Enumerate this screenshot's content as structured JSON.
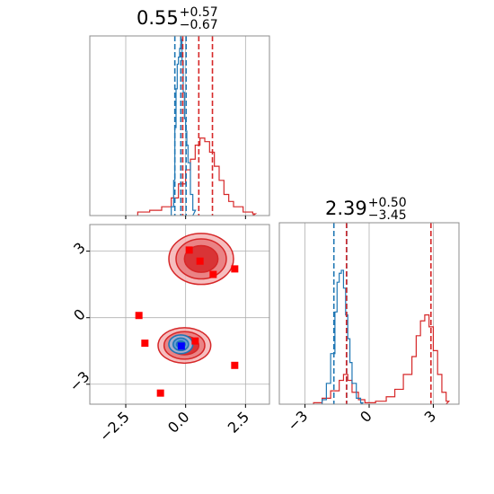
{
  "titles": {
    "x": {
      "value": "0.55",
      "plus": "+0.57",
      "minus": "−0.67"
    },
    "y": {
      "value": "2.39",
      "plus": "+0.50",
      "minus": "−3.45"
    }
  },
  "colors": {
    "red": "#d62728",
    "blue": "#1f77b4",
    "grid": "#b0b0b0",
    "marker_red": "#ff0000",
    "marker_blue": "#0000ff"
  },
  "chart_data": [
    {
      "panel": "x-marginal",
      "type": "area",
      "xlim": [
        -4,
        3.5
      ],
      "grid": true,
      "series": [
        {
          "color": "#d62728",
          "x": [
            -2.0,
            -1.5,
            -1.0,
            -0.6,
            -0.3,
            0.0,
            0.2,
            0.4,
            0.6,
            0.8,
            1.0,
            1.2,
            1.4,
            1.6,
            1.8,
            2.0,
            2.4,
            2.8
          ],
          "y": [
            0.02,
            0.03,
            0.05,
            0.1,
            0.18,
            0.26,
            0.32,
            0.4,
            0.44,
            0.42,
            0.36,
            0.28,
            0.2,
            0.12,
            0.08,
            0.05,
            0.02,
            0.01
          ]
        },
        {
          "color": "#1f77b4",
          "x": [
            -0.6,
            -0.5,
            -0.45,
            -0.4,
            -0.35,
            -0.3,
            -0.25,
            -0.2,
            -0.15,
            -0.1,
            -0.05,
            0.0,
            0.05,
            0.1,
            0.2,
            0.3
          ],
          "y": [
            0.05,
            0.2,
            0.5,
            0.72,
            0.86,
            0.9,
            0.95,
            1.0,
            0.88,
            0.7,
            0.55,
            0.48,
            0.4,
            0.3,
            0.12,
            0.03
          ]
        }
      ],
      "dashed_lines": [
        {
          "color": "#1f77b4",
          "x": [
            -0.45,
            -0.2,
            0.02
          ]
        },
        {
          "color": "#d62728",
          "x": [
            -0.12,
            0.55,
            1.12
          ]
        }
      ]
    },
    {
      "panel": "y-marginal",
      "type": "area",
      "xlim": [
        -4.2,
        4.2
      ],
      "xticks": [
        -3,
        0,
        3
      ],
      "xtick_labels": [
        "−3",
        "0",
        "3"
      ],
      "grid": true,
      "series": [
        {
          "color": "#d62728",
          "x": [
            -2.6,
            -2.2,
            -1.8,
            -1.4,
            -1.2,
            -1.0,
            -0.8,
            -0.5,
            -0.2,
            0.3,
            0.8,
            1.2,
            1.6,
            2.0,
            2.2,
            2.4,
            2.6,
            2.8,
            3.0,
            3.2,
            3.4,
            3.6
          ],
          "y": [
            0.01,
            0.04,
            0.09,
            0.16,
            0.2,
            0.16,
            0.08,
            0.03,
            0.01,
            0.02,
            0.05,
            0.1,
            0.2,
            0.32,
            0.46,
            0.56,
            0.6,
            0.52,
            0.36,
            0.2,
            0.08,
            0.02
          ]
        },
        {
          "color": "#1f77b4",
          "x": [
            -2.2,
            -2.0,
            -1.8,
            -1.6,
            -1.5,
            -1.4,
            -1.3,
            -1.2,
            -1.1,
            -1.0,
            -0.9,
            -0.8,
            -0.6,
            -0.4
          ],
          "y": [
            0.03,
            0.14,
            0.34,
            0.62,
            0.82,
            0.88,
            0.9,
            0.78,
            0.6,
            0.44,
            0.28,
            0.14,
            0.04,
            0.01
          ]
        }
      ],
      "dashed_lines": [
        {
          "color": "#1f77b4",
          "x": [
            -1.65,
            -1.05
          ]
        },
        {
          "color": "#d62728",
          "x": [
            -1.06,
            2.89
          ]
        }
      ]
    },
    {
      "panel": "joint",
      "type": "scatter",
      "xlim": [
        -4,
        3.5
      ],
      "ylim": [
        -3.9,
        4.2
      ],
      "xticks": [
        -2.5,
        0.0,
        2.5
      ],
      "xtick_labels": [
        "−2.5",
        "0.0",
        "2.5"
      ],
      "yticks": [
        -3,
        0,
        3
      ],
      "ytick_labels": [
        "−3",
        "0",
        "3"
      ],
      "grid": true,
      "red_contours": [
        {
          "cx": 0.65,
          "cy": 2.65,
          "levels_rx": [
            1.35,
            1.05,
            0.7
          ],
          "levels_ry": [
            1.15,
            0.9,
            0.6
          ]
        },
        {
          "cx": -0.05,
          "cy": -1.25,
          "levels_rx": [
            1.1,
            0.85,
            0.6
          ],
          "levels_ry": [
            0.8,
            0.62,
            0.42
          ]
        }
      ],
      "blue_contour": {
        "cx": -0.2,
        "cy": -1.2,
        "levels_rx": [
          0.5,
          0.32,
          0.18
        ],
        "levels_ry": [
          0.42,
          0.28,
          0.15
        ]
      },
      "red_squares": [
        {
          "x": 0.15,
          "y": 3.05
        },
        {
          "x": 0.6,
          "y": 2.55
        },
        {
          "x": 1.15,
          "y": 1.95
        },
        {
          "x": 2.05,
          "y": 2.2
        },
        {
          "x": -1.95,
          "y": 0.1
        },
        {
          "x": -1.7,
          "y": -1.15
        },
        {
          "x": 0.4,
          "y": -1.05
        },
        {
          "x": 2.05,
          "y": -2.15
        },
        {
          "x": -1.05,
          "y": -3.4
        }
      ],
      "blue_square": {
        "x": -0.18,
        "y": -1.28
      }
    }
  ]
}
